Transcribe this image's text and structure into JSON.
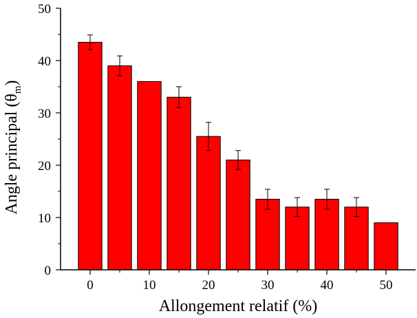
{
  "chart_data": {
    "type": "bar",
    "title": "",
    "xlabel": "Allongement relatif (%)",
    "ylabel": {
      "prefix": "Angle principal (",
      "symbol": "θ",
      "subscript": "m",
      "suffix": ")"
    },
    "xlim": [
      -5,
      55
    ],
    "ylim": [
      0,
      50
    ],
    "x_ticks": [
      0,
      10,
      20,
      30,
      40,
      50
    ],
    "y_ticks": [
      0,
      10,
      20,
      30,
      40,
      50
    ],
    "bar_width": 4,
    "bar_color": "#ff0000",
    "grid": false,
    "x": [
      0,
      5,
      10,
      15,
      20,
      25,
      30,
      35,
      40,
      45,
      50
    ],
    "values": [
      43.5,
      39,
      36,
      33,
      25.5,
      21,
      13.5,
      12,
      13.5,
      12,
      9
    ],
    "errors": [
      1.4,
      1.9,
      0,
      2,
      2.7,
      1.8,
      1.9,
      1.8,
      1.9,
      1.8,
      0
    ]
  }
}
